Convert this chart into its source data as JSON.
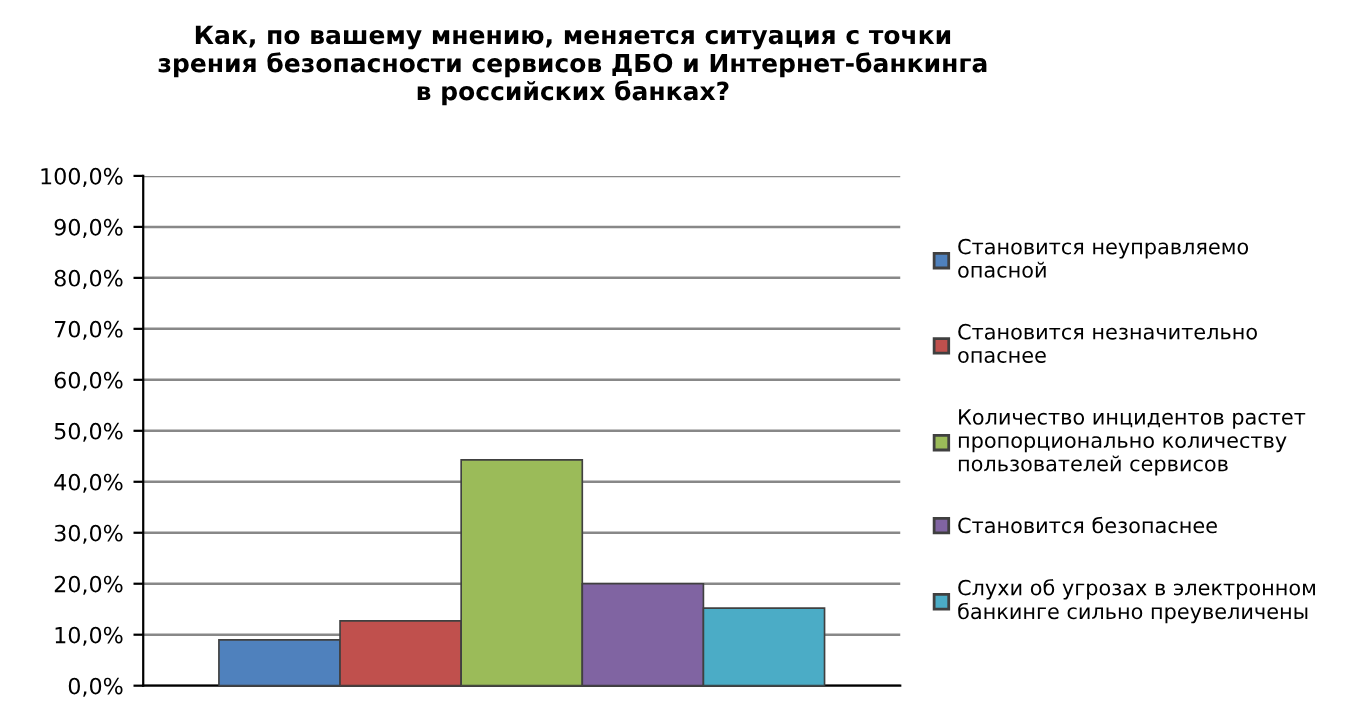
{
  "chart_data": {
    "type": "bar",
    "title": "Как, по вашему мнению, меняется ситуация с точки зрения безопасности сервисов ДБО и Интернет-банкинга в российских банках?",
    "categories": [
      null
    ],
    "series": [
      {
        "name": "Становится неуправляемо опасной",
        "color": "#4f81bd",
        "values": [
          9.0
        ]
      },
      {
        "name": "Становится незначительно опаснее",
        "color": "#c0504d",
        "values": [
          12.7
        ]
      },
      {
        "name": "Количество инцидентов растет пропорционально количеству пользователей сервисов",
        "color": "#9bbb59",
        "values": [
          44.3
        ]
      },
      {
        "name": "Становится безопаснее",
        "color": "#8064a2",
        "values": [
          20.0
        ]
      },
      {
        "name": "Слухи об угрозах в электронном банкинге сильно преувеличены",
        "color": "#4bacc6",
        "values": [
          15.2
        ]
      }
    ],
    "ylim": [
      0,
      100
    ],
    "yticks": [
      {
        "value": 0,
        "label": "0,0%"
      },
      {
        "value": 10,
        "label": "10,0%"
      },
      {
        "value": 20,
        "label": "20,0%"
      },
      {
        "value": 30,
        "label": "30,0%"
      },
      {
        "value": 40,
        "label": "40,0%"
      },
      {
        "value": 50,
        "label": "50,0%"
      },
      {
        "value": 60,
        "label": "60,0%"
      },
      {
        "value": 70,
        "label": "70,0%"
      },
      {
        "value": 80,
        "label": "80,0%"
      },
      {
        "value": 90,
        "label": "90,0%"
      },
      {
        "value": 100,
        "label": "100,0%"
      }
    ],
    "grid": "y",
    "legend": "right"
  }
}
